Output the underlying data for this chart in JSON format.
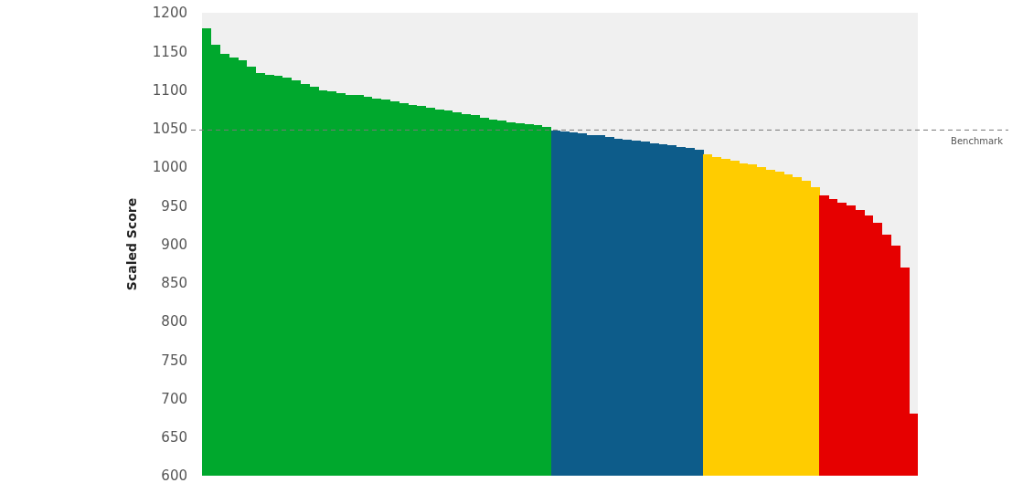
{
  "chart_data": {
    "type": "bar",
    "ylabel": "Scaled Score",
    "categories": [
      null,
      null,
      null,
      null,
      null,
      null,
      null,
      null,
      null,
      null,
      null,
      null,
      null,
      null,
      null,
      null,
      null,
      null,
      null,
      null,
      null,
      null,
      null,
      null,
      null,
      null,
      null,
      null,
      null,
      null,
      null,
      null,
      null,
      null,
      null,
      null,
      null,
      null,
      null,
      null,
      null,
      null,
      null,
      null,
      null,
      null,
      null,
      null,
      null,
      null,
      null,
      null,
      null,
      null,
      null,
      null,
      null,
      null,
      null,
      null,
      null,
      null,
      null,
      null,
      null,
      null,
      null,
      null,
      null,
      null,
      null,
      null,
      null,
      null,
      null,
      null,
      null,
      null,
      null,
      null
    ],
    "values": [
      1180,
      1158,
      1147,
      1142,
      1138,
      1130,
      1122,
      1120,
      1118,
      1116,
      1112,
      1108,
      1104,
      1100,
      1098,
      1096,
      1094,
      1093,
      1091,
      1089,
      1087,
      1085,
      1083,
      1081,
      1079,
      1077,
      1075,
      1073,
      1071,
      1069,
      1067,
      1064,
      1062,
      1060,
      1058,
      1057,
      1056,
      1054,
      1052,
      1047,
      1046,
      1045,
      1044,
      1042,
      1041,
      1039,
      1037,
      1036,
      1034,
      1033,
      1031,
      1030,
      1028,
      1026,
      1025,
      1023,
      1016,
      1013,
      1011,
      1008,
      1005,
      1003,
      1000,
      997,
      994,
      991,
      987,
      982,
      974,
      963,
      959,
      954,
      950,
      944,
      937,
      928,
      913,
      898,
      870,
      680
    ],
    "colors": [
      "#00a82d",
      "#00a82d",
      "#00a82d",
      "#00a82d",
      "#00a82d",
      "#00a82d",
      "#00a82d",
      "#00a82d",
      "#00a82d",
      "#00a82d",
      "#00a82d",
      "#00a82d",
      "#00a82d",
      "#00a82d",
      "#00a82d",
      "#00a82d",
      "#00a82d",
      "#00a82d",
      "#00a82d",
      "#00a82d",
      "#00a82d",
      "#00a82d",
      "#00a82d",
      "#00a82d",
      "#00a82d",
      "#00a82d",
      "#00a82d",
      "#00a82d",
      "#00a82d",
      "#00a82d",
      "#00a82d",
      "#00a82d",
      "#00a82d",
      "#00a82d",
      "#00a82d",
      "#00a82d",
      "#00a82d",
      "#00a82d",
      "#00a82d",
      "#0d5c8a",
      "#0d5c8a",
      "#0d5c8a",
      "#0d5c8a",
      "#0d5c8a",
      "#0d5c8a",
      "#0d5c8a",
      "#0d5c8a",
      "#0d5c8a",
      "#0d5c8a",
      "#0d5c8a",
      "#0d5c8a",
      "#0d5c8a",
      "#0d5c8a",
      "#0d5c8a",
      "#0d5c8a",
      "#0d5c8a",
      "#ffcc00",
      "#ffcc00",
      "#ffcc00",
      "#ffcc00",
      "#ffcc00",
      "#ffcc00",
      "#ffcc00",
      "#ffcc00",
      "#ffcc00",
      "#ffcc00",
      "#ffcc00",
      "#ffcc00",
      "#ffcc00",
      "#e60000",
      "#e60000",
      "#e60000",
      "#e60000",
      "#e60000",
      "#e60000",
      "#e60000",
      "#e60000",
      "#e60000",
      "#e60000",
      "#e60000"
    ],
    "ylim": [
      600,
      1200
    ],
    "yticks": [
      600,
      650,
      700,
      750,
      800,
      850,
      900,
      950,
      1000,
      1050,
      1100,
      1150,
      1200
    ],
    "ref_lines": [
      {
        "axis": "y",
        "value": 1048,
        "label": "Benchmark",
        "color": "#777777",
        "line_style": "dashed"
      }
    ]
  }
}
